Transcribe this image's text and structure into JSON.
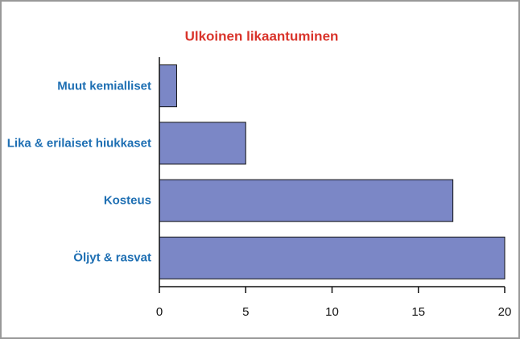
{
  "chart_data": {
    "type": "barh",
    "title": "Ulkoinen likaantuminen",
    "categories": [
      "Muut kemialliset",
      "Lika & erilaiset hiukkaset",
      "Kosteus",
      "Öljyt & rasvat"
    ],
    "values": [
      1,
      5,
      17,
      20
    ],
    "color": "#7b87c6",
    "xlim": [
      0,
      20
    ],
    "xticks": [
      0,
      5,
      10,
      15,
      20
    ]
  }
}
